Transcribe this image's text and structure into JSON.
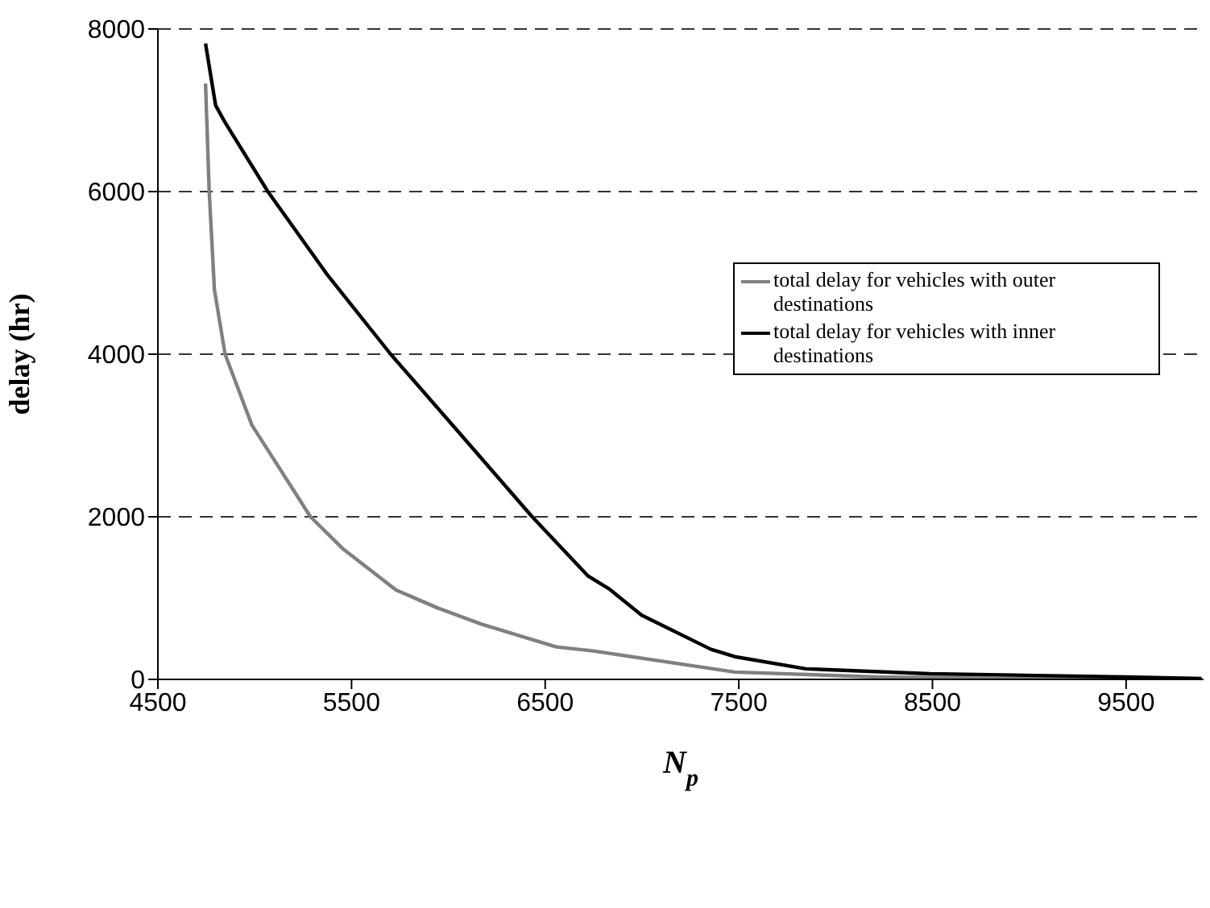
{
  "chart_data": {
    "type": "line",
    "xlabel": "N$_{p}$",
    "ylabel": "delay (hr)",
    "xlim": [
      4500,
      9900
    ],
    "xticks": [
      4500,
      5500,
      6500,
      7500,
      8500,
      9500
    ],
    "ylim": [
      0,
      8000
    ],
    "yticks": [
      0,
      2000,
      4000,
      6000,
      8000
    ],
    "grid": "y",
    "legend": "right",
    "marker": "none",
    "line_style": "solid",
    "series": [
      {
        "name": "total delay for vehicles with outer destinations",
        "color": "#808080",
        "x": [
          4746,
          4765,
          4792,
          4847,
          4985,
          5288,
          5454,
          5730,
          5943,
          6171,
          6557,
          6747,
          7478,
          8211,
          8900,
          9890
        ],
        "values": [
          7330,
          6000,
          4790,
          4000,
          3130,
          2000,
          1610,
          1100,
          880,
          680,
          400,
          350,
          90,
          30,
          10,
          3
        ]
      },
      {
        "name": "total delay for vehicles with inner destinations",
        "color": "#000000",
        "x": [
          4746,
          4798,
          4847,
          5068,
          5371,
          5702,
          6061,
          6433,
          6722,
          6832,
          6998,
          7356,
          7478,
          7846,
          8487,
          9492,
          9890
        ],
        "values": [
          7820,
          7060,
          6850,
          6000,
          4990,
          4000,
          3020,
          2000,
          1270,
          1110,
          790,
          370,
          280,
          130,
          70,
          30,
          10
        ]
      }
    ]
  }
}
